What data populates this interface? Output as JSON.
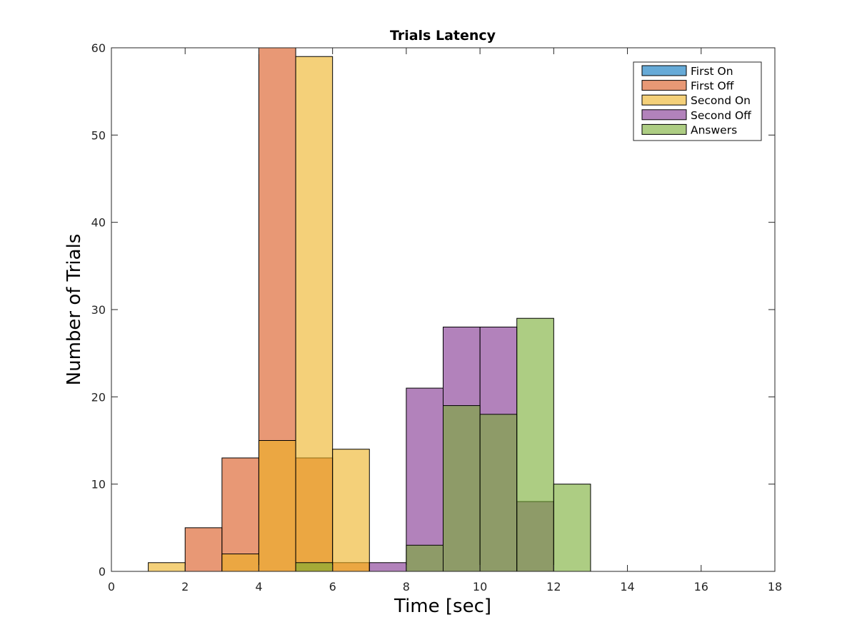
{
  "chart_data": {
    "type": "bar",
    "title": "Trials Latency",
    "xlabel": "Time [sec]",
    "ylabel": "Number of Trials",
    "xlim": [
      0,
      18
    ],
    "ylim": [
      0,
      60
    ],
    "xticks": [
      0,
      2,
      4,
      6,
      8,
      10,
      12,
      14,
      16,
      18
    ],
    "yticks": [
      0,
      10,
      20,
      30,
      40,
      50,
      60
    ],
    "bin_width": 1,
    "grid": false,
    "legend_position": "top-right",
    "bar_opacity": 0.6,
    "series": [
      {
        "name": "First On",
        "color": "#0072BD",
        "bins": []
      },
      {
        "name": "First Off",
        "color": "#D95319",
        "bins": [
          {
            "x": 2,
            "value": 5
          },
          {
            "x": 3,
            "value": 13
          },
          {
            "x": 4,
            "value": 60
          },
          {
            "x": 5,
            "value": 13
          },
          {
            "x": 6,
            "value": 1
          }
        ]
      },
      {
        "name": "Second On",
        "color": "#EDB120",
        "bins": [
          {
            "x": 1,
            "value": 1
          },
          {
            "x": 3,
            "value": 2
          },
          {
            "x": 4,
            "value": 15
          },
          {
            "x": 5,
            "value": 59
          },
          {
            "x": 6,
            "value": 14
          }
        ]
      },
      {
        "name": "Second Off",
        "color": "#7E2F8E",
        "bins": [
          {
            "x": 7,
            "value": 1
          },
          {
            "x": 8,
            "value": 21
          },
          {
            "x": 9,
            "value": 28
          },
          {
            "x": 10,
            "value": 28
          },
          {
            "x": 11,
            "value": 8
          }
        ]
      },
      {
        "name": "Answers",
        "color": "#77AC30",
        "bins": [
          {
            "x": 5,
            "value": 1
          },
          {
            "x": 8,
            "value": 3
          },
          {
            "x": 9,
            "value": 19
          },
          {
            "x": 10,
            "value": 18
          },
          {
            "x": 11,
            "value": 29
          },
          {
            "x": 12,
            "value": 10
          }
        ]
      }
    ]
  }
}
